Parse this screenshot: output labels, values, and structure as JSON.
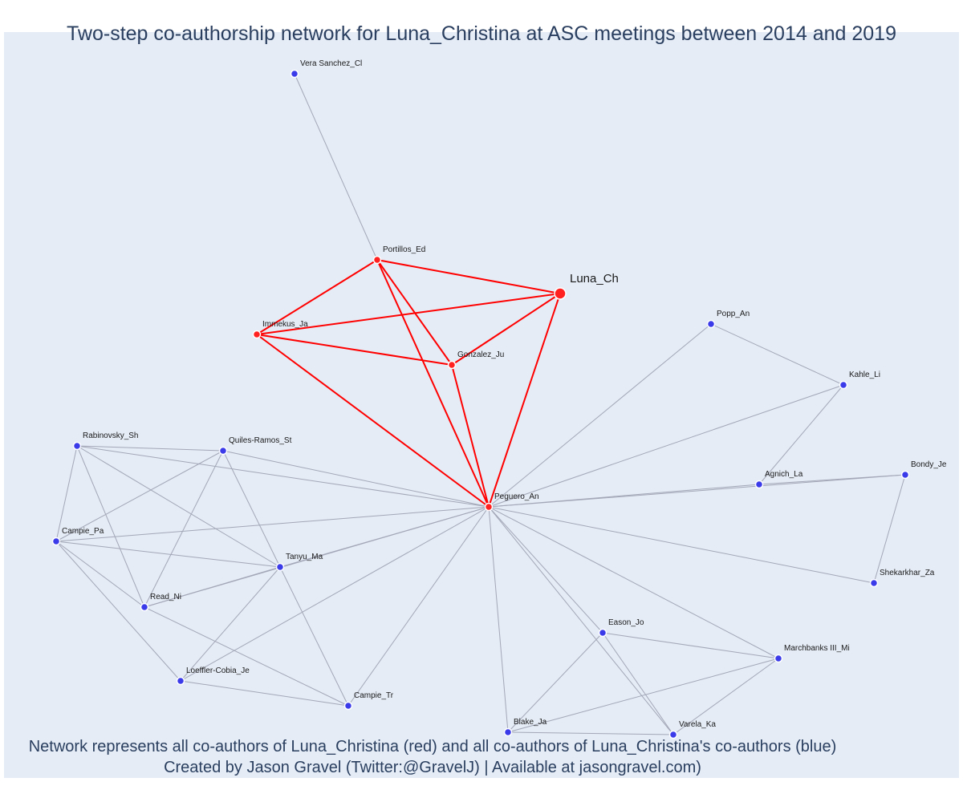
{
  "title": "Two-step co-authorship network for Luna_Christina at ASC meetings between 2014 and 2019",
  "caption": {
    "line1": "Network represents all co-authors of Luna_Christina (red) and all co-authors of Luna_Christina's co-authors (blue)",
    "line2": "Created by Jason Gravel (Twitter:@GravelJ) | Available at jasongravel.com)"
  },
  "colors": {
    "first_degree": "#ff2020",
    "second_degree": "#3b3bea",
    "background": "#e5ecf6",
    "red_edge": "#ff0000",
    "gray_edge": "#a3a7b7"
  },
  "nodes": [
    {
      "id": "luna",
      "label": "Luna_Ch",
      "group": "focal"
    },
    {
      "id": "portillos",
      "label": "Portillos_Ed",
      "group": "first"
    },
    {
      "id": "immekus",
      "label": "Immekus_Ja",
      "group": "first"
    },
    {
      "id": "gonzalez",
      "label": "Gonzalez_Ju",
      "group": "first"
    },
    {
      "id": "peguero",
      "label": "Peguero_An",
      "group": "first"
    },
    {
      "id": "vera",
      "label": "Vera Sanchez_Cl",
      "group": "second"
    },
    {
      "id": "popp",
      "label": "Popp_An",
      "group": "second"
    },
    {
      "id": "kahle",
      "label": "Kahle_Li",
      "group": "second"
    },
    {
      "id": "agnich",
      "label": "Agnich_La",
      "group": "second"
    },
    {
      "id": "bondy",
      "label": "Bondy_Je",
      "group": "second"
    },
    {
      "id": "shekarkhar",
      "label": "Shekarkhar_Za",
      "group": "second"
    },
    {
      "id": "rabinovsky",
      "label": "Rabinovsky_Sh",
      "group": "second"
    },
    {
      "id": "quiles",
      "label": "Quiles-Ramos_St",
      "group": "second"
    },
    {
      "id": "campie_pa",
      "label": "Campie_Pa",
      "group": "second"
    },
    {
      "id": "tanyu",
      "label": "Tanyu_Ma",
      "group": "second"
    },
    {
      "id": "read",
      "label": "Read_Ni",
      "group": "second"
    },
    {
      "id": "loeffler",
      "label": "Loeffler-Cobia_Je",
      "group": "second"
    },
    {
      "id": "campie_tr",
      "label": "Campie_Tr",
      "group": "second"
    },
    {
      "id": "eason",
      "label": "Eason_Jo",
      "group": "second"
    },
    {
      "id": "marchbanks",
      "label": "Marchbanks III_Mi",
      "group": "second"
    },
    {
      "id": "blake",
      "label": "Blake_Ja",
      "group": "second"
    },
    {
      "id": "varela",
      "label": "Varela_Ka",
      "group": "second"
    }
  ],
  "edges": [
    [
      "luna",
      "portillos"
    ],
    [
      "luna",
      "immekus"
    ],
    [
      "luna",
      "gonzalez"
    ],
    [
      "luna",
      "peguero"
    ],
    [
      "portillos",
      "immekus"
    ],
    [
      "portillos",
      "gonzalez"
    ],
    [
      "portillos",
      "peguero"
    ],
    [
      "immekus",
      "gonzalez"
    ],
    [
      "immekus",
      "peguero"
    ],
    [
      "gonzalez",
      "peguero"
    ],
    [
      "portillos",
      "vera"
    ],
    [
      "peguero",
      "popp"
    ],
    [
      "popp",
      "kahle"
    ],
    [
      "peguero",
      "kahle"
    ],
    [
      "kahle",
      "agnich"
    ],
    [
      "peguero",
      "agnich"
    ],
    [
      "agnich",
      "bondy"
    ],
    [
      "peguero",
      "bondy"
    ],
    [
      "bondy",
      "shekarkhar"
    ],
    [
      "peguero",
      "shekarkhar"
    ],
    [
      "peguero",
      "rabinovsky"
    ],
    [
      "peguero",
      "quiles"
    ],
    [
      "peguero",
      "campie_pa"
    ],
    [
      "peguero",
      "tanyu"
    ],
    [
      "peguero",
      "read"
    ],
    [
      "peguero",
      "loeffler"
    ],
    [
      "peguero",
      "campie_tr"
    ],
    [
      "peguero",
      "eason"
    ],
    [
      "peguero",
      "marchbanks"
    ],
    [
      "peguero",
      "blake"
    ],
    [
      "peguero",
      "varela"
    ],
    [
      "rabinovsky",
      "quiles"
    ],
    [
      "rabinovsky",
      "campie_pa"
    ],
    [
      "rabinovsky",
      "tanyu"
    ],
    [
      "rabinovsky",
      "read"
    ],
    [
      "quiles",
      "campie_pa"
    ],
    [
      "quiles",
      "tanyu"
    ],
    [
      "quiles",
      "read"
    ],
    [
      "campie_pa",
      "tanyu"
    ],
    [
      "campie_pa",
      "read"
    ],
    [
      "campie_pa",
      "loeffler"
    ],
    [
      "tanyu",
      "read"
    ],
    [
      "tanyu",
      "loeffler"
    ],
    [
      "tanyu",
      "campie_tr"
    ],
    [
      "read",
      "campie_tr"
    ],
    [
      "loeffler",
      "campie_tr"
    ],
    [
      "eason",
      "marchbanks"
    ],
    [
      "eason",
      "blake"
    ],
    [
      "eason",
      "varela"
    ],
    [
      "marchbanks",
      "blake"
    ],
    [
      "marchbanks",
      "varela"
    ],
    [
      "blake",
      "varela"
    ]
  ]
}
